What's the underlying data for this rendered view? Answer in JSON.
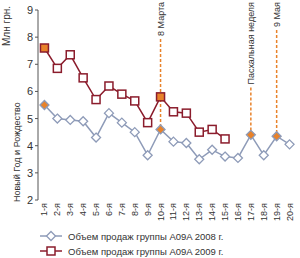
{
  "chart_data": {
    "type": "line",
    "y_label": "Млн грн.",
    "categories": [
      "1-я",
      "2-я",
      "3-я",
      "4-я",
      "5-я",
      "6-я",
      "7-я",
      "8-я",
      "9-я",
      "10-я",
      "11-я",
      "12-я",
      "13-я",
      "14-я",
      "15-я",
      "16-я",
      "17-я",
      "18-я",
      "19-я",
      "20-я"
    ],
    "series": [
      {
        "name": "Объем продаж группы A09A 2008 г.",
        "color": "#8e9bb8",
        "marker": "diamond",
        "values": [
          5.5,
          5.0,
          4.95,
          4.9,
          4.3,
          5.2,
          4.85,
          4.5,
          3.65,
          4.6,
          4.15,
          4.1,
          3.5,
          3.85,
          3.6,
          3.55,
          4.4,
          3.65,
          4.35,
          4.05
        ]
      },
      {
        "name": "Объем продаж группы A09A 2009 г.",
        "color": "#8b1c2c",
        "marker": "square",
        "values": [
          7.6,
          6.85,
          7.35,
          6.5,
          5.7,
          6.2,
          5.9,
          5.65,
          4.85,
          5.8,
          5.25,
          5.2,
          4.5,
          4.6,
          4.25,
          null,
          null,
          null,
          null,
          null
        ]
      }
    ],
    "ylim": [
      2,
      9
    ],
    "yticks": [
      2,
      3,
      4,
      5,
      6,
      7,
      8,
      9
    ],
    "grid": false,
    "legend": "bottom",
    "annotations": [
      {
        "text": "Новый Год и Рождество",
        "x": "1-я"
      },
      {
        "text": "8 Марта",
        "x": "10-я"
      },
      {
        "text": "Пасхальная неделя",
        "x": "17-я"
      },
      {
        "text": "9 Мая",
        "x": "19-я"
      }
    ]
  }
}
